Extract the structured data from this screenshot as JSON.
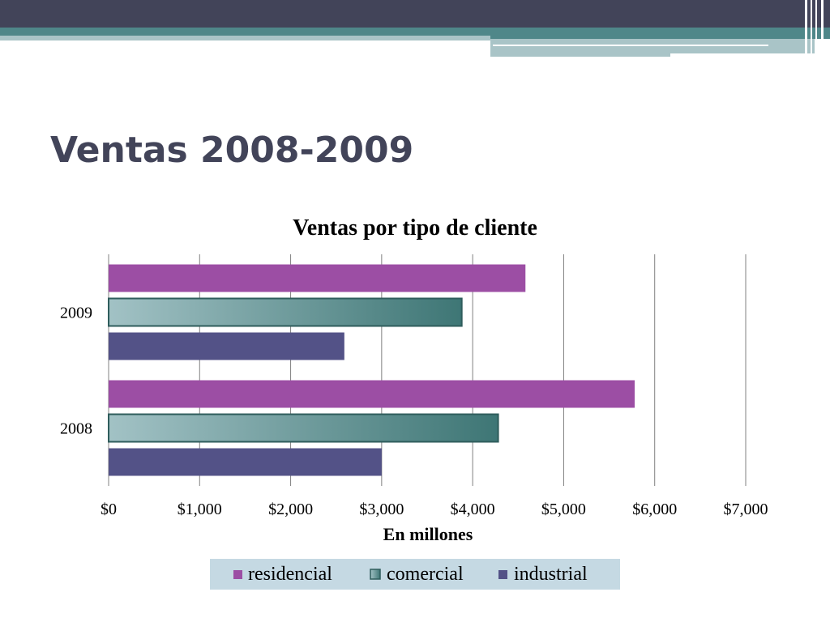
{
  "slide": {
    "title": "Ventas 2008-2009"
  },
  "colors": {
    "header_dark": "#424459",
    "header_teal": "#4f8789",
    "header_light": "#a9c4c7",
    "residencial": "#9c4ea4",
    "comercial_light": "#a2c2c5",
    "comercial_dark": "#3e7675",
    "industrial": "#535287",
    "legend_bg": "#c5d9e3",
    "grid": "#808080"
  },
  "chart_data": {
    "type": "bar",
    "orientation": "horizontal",
    "title": "Ventas por tipo de cliente",
    "xlabel": "En millones",
    "ylabel": "",
    "categories": [
      "2009",
      "2008"
    ],
    "series": [
      {
        "name": "residencial",
        "values": [
          4580,
          5780
        ]
      },
      {
        "name": "comercial",
        "values": [
          3880,
          4280
        ]
      },
      {
        "name": "industrial",
        "values": [
          2590,
          3000
        ]
      }
    ],
    "xlim": [
      0,
      7000
    ],
    "xticks": [
      0,
      1000,
      2000,
      3000,
      4000,
      5000,
      6000,
      7000
    ],
    "xtick_labels": [
      "$0",
      "$1,000",
      "$2,000",
      "$3,000",
      "$4,000",
      "$5,000",
      "$6,000",
      "$7,000"
    ],
    "grid": true,
    "legend_position": "bottom"
  }
}
